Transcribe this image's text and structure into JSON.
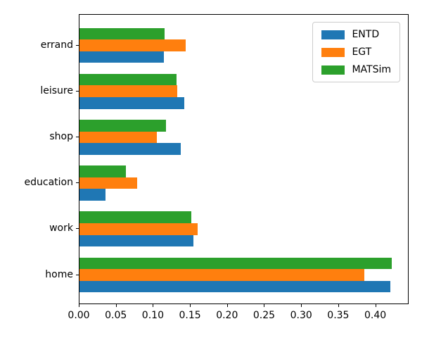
{
  "chart_data": {
    "type": "bar",
    "orientation": "horizontal",
    "title": "",
    "xlabel": "",
    "ylabel": "",
    "grid": false,
    "legend_position": "upper right",
    "categories": [
      "errand",
      "leisure",
      "shop",
      "education",
      "work",
      "home"
    ],
    "series": [
      {
        "name": "ENTD",
        "color": "#1f77b4",
        "values": [
          0.114,
          0.141,
          0.137,
          0.035,
          0.154,
          0.419
        ]
      },
      {
        "name": "EGT",
        "color": "#ff7f0e",
        "values": [
          0.143,
          0.132,
          0.104,
          0.078,
          0.159,
          0.384
        ]
      },
      {
        "name": "MATSim",
        "color": "#2ca02c",
        "values": [
          0.115,
          0.131,
          0.117,
          0.063,
          0.151,
          0.421
        ]
      }
    ],
    "bar_group_order_top_to_bottom": [
      "MATSim",
      "EGT",
      "ENTD"
    ],
    "xlim": [
      0,
      0.445
    ],
    "xticks": [
      0,
      0.05,
      0.1,
      0.15,
      0.2,
      0.25,
      0.3,
      0.35,
      0.4
    ],
    "xtick_labels": [
      "0.00",
      "0.05",
      "0.10",
      "0.15",
      "0.20",
      "0.25",
      "0.30",
      "0.35",
      "0.40"
    ],
    "axis_color": "#000000",
    "background_color": "#ffffff"
  }
}
